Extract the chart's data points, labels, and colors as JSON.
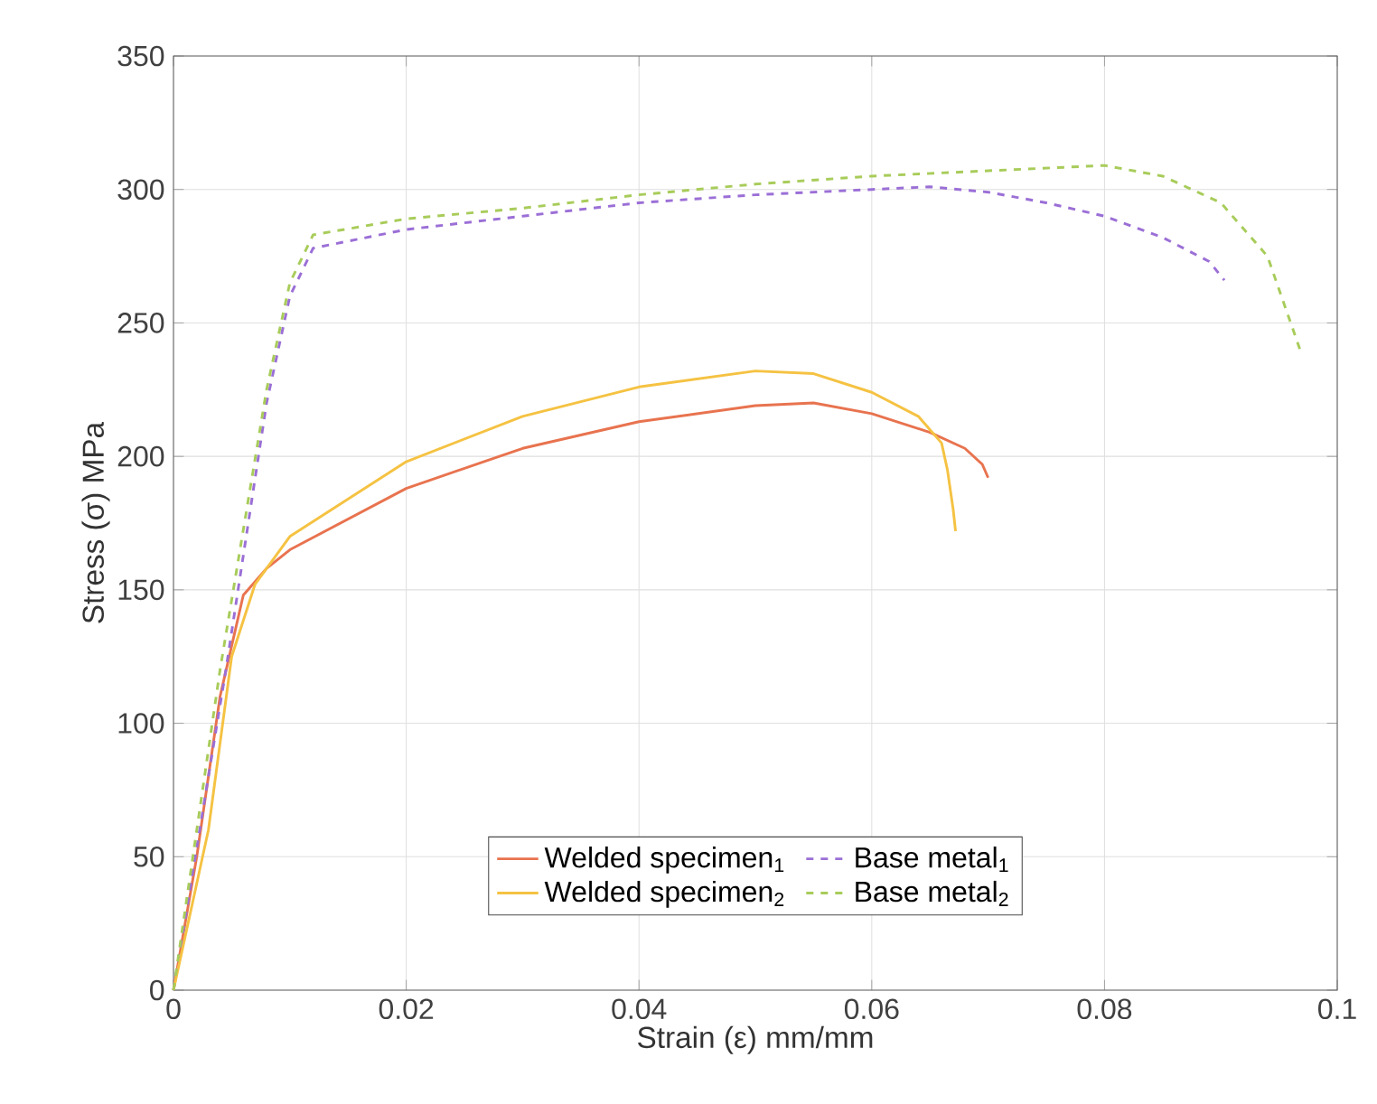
{
  "chart_data": {
    "type": "line",
    "xlabel": "Strain (ε) mm/mm",
    "ylabel": "Stress (σ) MPa",
    "xlim": [
      0,
      0.1
    ],
    "ylim": [
      0,
      350
    ],
    "xticks": [
      0,
      0.02,
      0.04,
      0.06,
      0.08,
      0.1
    ],
    "yticks": [
      0,
      50,
      100,
      150,
      200,
      250,
      300,
      350
    ],
    "grid": true,
    "legend": "bottom",
    "series": [
      {
        "name": "Welded specimen$_{1}$",
        "color": "#e8734f",
        "line_style": "solid",
        "x": [
          0,
          0.002,
          0.004,
          0.006,
          0.008,
          0.01,
          0.02,
          0.03,
          0.04,
          0.05,
          0.055,
          0.06,
          0.065,
          0.068,
          0.0695,
          0.07
        ],
        "values": [
          0,
          50,
          110,
          148,
          158,
          165,
          188,
          203,
          213,
          219,
          220,
          216,
          209,
          203,
          197,
          192
        ]
      },
      {
        "name": "Welded specimen$_{2}$",
        "color": "#f5c242",
        "line_style": "solid",
        "x": [
          0,
          0.003,
          0.005,
          0.007,
          0.01,
          0.02,
          0.03,
          0.04,
          0.05,
          0.055,
          0.06,
          0.064,
          0.066,
          0.0665,
          0.067,
          0.0672
        ],
        "values": [
          0,
          60,
          125,
          152,
          170,
          198,
          215,
          226,
          232,
          231,
          224,
          215,
          205,
          195,
          180,
          172
        ]
      },
      {
        "name": "Base metal$_{1}$",
        "color": "#9b6fd6",
        "line_style": "dashed",
        "x": [
          0,
          0.0045,
          0.008,
          0.01,
          0.012,
          0.02,
          0.03,
          0.04,
          0.05,
          0.06,
          0.065,
          0.07,
          0.075,
          0.08,
          0.085,
          0.089,
          0.0903
        ],
        "values": [
          0,
          120,
          220,
          260,
          278,
          285,
          290,
          295,
          298,
          300,
          301,
          299,
          295,
          290,
          282,
          273,
          266
        ]
      },
      {
        "name": "Base metal$_{2}$",
        "color": "#a8cc5a",
        "line_style": "dashed",
        "x": [
          0,
          0.004,
          0.008,
          0.01,
          0.012,
          0.02,
          0.03,
          0.04,
          0.05,
          0.06,
          0.07,
          0.08,
          0.085,
          0.09,
          0.094,
          0.0968
        ],
        "values": [
          0,
          120,
          225,
          265,
          283,
          289,
          293,
          298,
          302,
          305,
          307,
          309,
          305,
          295,
          275,
          240
        ]
      }
    ]
  }
}
